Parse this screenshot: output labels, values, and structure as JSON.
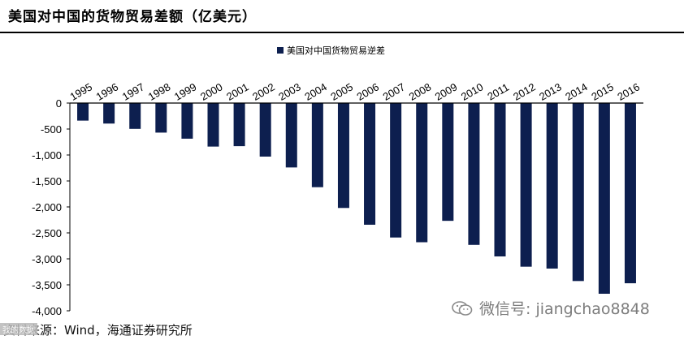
{
  "title": "美国对中国的货物贸易差额（亿美元）",
  "footer": {
    "source": "资料来源：Wind，海通证券研究所",
    "badge": "我的数据"
  },
  "watermark": {
    "text": "微信号: jiangchao8848",
    "icon": "wechat-icon"
  },
  "colors": {
    "bar": "#0d1f4f",
    "axis": "#000000"
  },
  "chart_data": {
    "type": "bar",
    "title": "美国对中国的货物贸易差额（亿美元）",
    "legend": "美国对中国货物贸易逆差",
    "legend_position": "top-center",
    "categories": [
      "1995",
      "1996",
      "1997",
      "1998",
      "1999",
      "2000",
      "2001",
      "2002",
      "2003",
      "2004",
      "2005",
      "2006",
      "2007",
      "2008",
      "2009",
      "2010",
      "2011",
      "2012",
      "2013",
      "2014",
      "2015",
      "2016"
    ],
    "values": [
      -338,
      -395,
      -497,
      -569,
      -686,
      -838,
      -830,
      -1031,
      -1240,
      -1620,
      -2020,
      -2343,
      -2589,
      -2680,
      -2268,
      -2731,
      -2953,
      -3151,
      -3187,
      -3427,
      -3672,
      -3470
    ],
    "ylim": [
      -4000,
      0
    ],
    "yticks": [
      0,
      -500,
      -1000,
      -1500,
      -2000,
      -2500,
      -3000,
      -3500,
      -4000
    ],
    "ytick_labels": [
      "0",
      "-500",
      "-1,000",
      "-1,500",
      "-2,000",
      "-2,500",
      "-3,000",
      "-3,500",
      "-4,000"
    ],
    "xlabel": "",
    "ylabel": "",
    "grid": false,
    "x_axis_position": "top"
  }
}
